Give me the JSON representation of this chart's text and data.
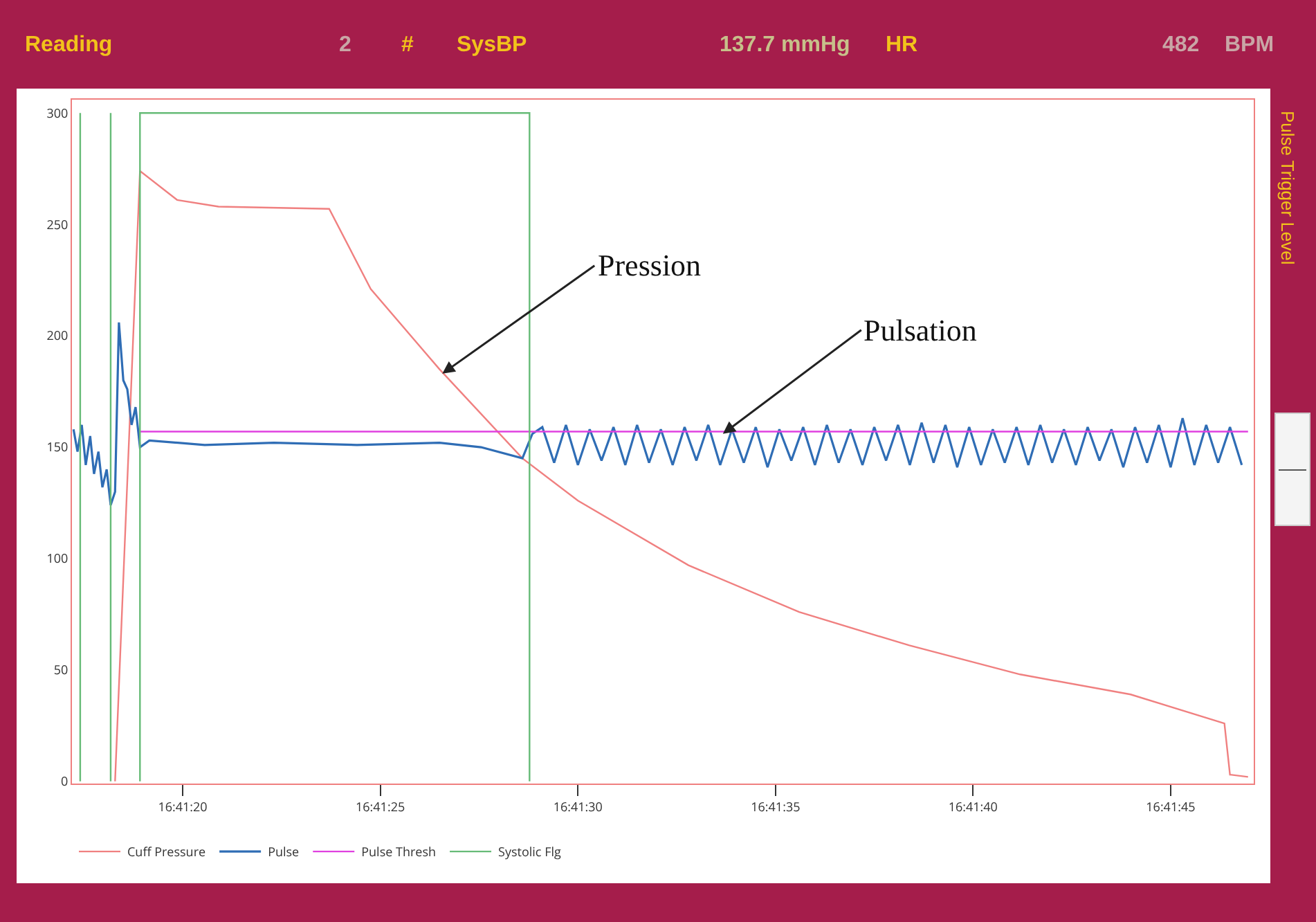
{
  "chart_data": {
    "type": "line",
    "marker": "none",
    "line_style": "solid",
    "grid": false,
    "legend": "bottom left",
    "xlim": [
      16.688111,
      16.696417
    ],
    "xticks": [
      {
        "value": 16.688889,
        "label": "16:41:20"
      },
      {
        "value": 16.690278,
        "label": "16:41:25"
      },
      {
        "value": 16.691667,
        "label": "16:41:30"
      },
      {
        "value": 16.693056,
        "label": "16:41:35"
      },
      {
        "value": 16.694444,
        "label": "16:41:40"
      },
      {
        "value": 16.695833,
        "label": "16:41:45"
      }
    ],
    "ylim": [
      -1,
      306
    ],
    "yticks": [
      0,
      50,
      100,
      150,
      200,
      250,
      300
    ],
    "series": [
      {
        "name": "Cuff Pressure",
        "color": "#f08080",
        "x": [
          16.688414,
          16.688589,
          16.68885,
          16.689141,
          16.689919,
          16.690211,
          16.690694,
          16.691277,
          16.691667,
          16.692444,
          16.693222,
          16.693997,
          16.694775,
          16.695552,
          16.696211,
          16.69625,
          16.696377
        ],
        "values": [
          0,
          274,
          261,
          258,
          257,
          221,
          185,
          145,
          126,
          97,
          76,
          61,
          48,
          39,
          26,
          3,
          2
        ]
      },
      {
        "name": "Pulse",
        "color": "#2f6db5",
        "x": [
          16.688122,
          16.68815,
          16.68818,
          16.688208,
          16.688239,
          16.688266,
          16.688297,
          16.688325,
          16.688355,
          16.688383,
          16.688414,
          16.688441,
          16.688472,
          16.6885,
          16.68853,
          16.688558,
          16.688589,
          16.688655,
          16.689044,
          16.68953,
          16.690114,
          16.690694,
          16.690986,
          16.691277,
          16.691347,
          16.691417,
          16.6915,
          16.691583,
          16.691667,
          16.69175,
          16.691833,
          16.691917,
          16.692,
          16.692083,
          16.692167,
          16.69225,
          16.692333,
          16.692417,
          16.6925,
          16.692583,
          16.692667,
          16.69275,
          16.692833,
          16.692917,
          16.693,
          16.693083,
          16.693167,
          16.69325,
          16.693333,
          16.693417,
          16.6935,
          16.693583,
          16.693667,
          16.69375,
          16.693833,
          16.693917,
          16.694,
          16.694083,
          16.694167,
          16.69425,
          16.694333,
          16.694417,
          16.6945,
          16.694583,
          16.694667,
          16.69475,
          16.694833,
          16.694917,
          16.695,
          16.695083,
          16.695167,
          16.69525,
          16.695333,
          16.695417,
          16.6955,
          16.695583,
          16.695667,
          16.69575,
          16.695833,
          16.695917,
          16.696,
          16.696083,
          16.696167,
          16.69625,
          16.696333
        ],
        "values": [
          158,
          148,
          160,
          142,
          155,
          138,
          148,
          132,
          140,
          124,
          130,
          206,
          180,
          176,
          160,
          168,
          150,
          153,
          151,
          152,
          151,
          152,
          150,
          145,
          156,
          159,
          143,
          160,
          142,
          158,
          144,
          159,
          142,
          160,
          143,
          158,
          142,
          159,
          144,
          160,
          142,
          158,
          143,
          159,
          141,
          158,
          144,
          159,
          142,
          160,
          143,
          158,
          142,
          159,
          144,
          160,
          142,
          161,
          143,
          160,
          141,
          159,
          142,
          158,
          143,
          159,
          142,
          160,
          143,
          158,
          142,
          159,
          144,
          158,
          141,
          159,
          143,
          160,
          141,
          163,
          142,
          160,
          143,
          159,
          142
        ]
      },
      {
        "name": "Pulse Thresh",
        "color": "#e040e0",
        "x": [
          16.688589,
          16.696377
        ],
        "values": [
          157,
          157
        ]
      },
      {
        "name": "Systolic Flg",
        "color": "#66bb77",
        "x": [
          16.688589,
          16.688589,
          16.691327,
          16.691327
        ],
        "values": [
          0,
          300,
          300,
          0
        ]
      },
      {
        "color": "#66bb77",
        "x": [
          16.688169,
          16.688169
        ],
        "values": [
          0,
          300
        ]
      },
      {
        "color": "#66bb77",
        "x": [
          16.688383,
          16.688383
        ],
        "values": [
          0,
          300
        ]
      }
    ],
    "annotations": [
      "Reading",
      "2",
      "#",
      "SysBP",
      "137.7 mmHg",
      "HR",
      "482",
      "BPM",
      "Pulse Trigger Level",
      {
        "text": "Pression",
        "x": 16.690714,
        "y": 183
      },
      {
        "text": "Pulsation",
        "x": 16.692686,
        "y": 156
      }
    ]
  }
}
